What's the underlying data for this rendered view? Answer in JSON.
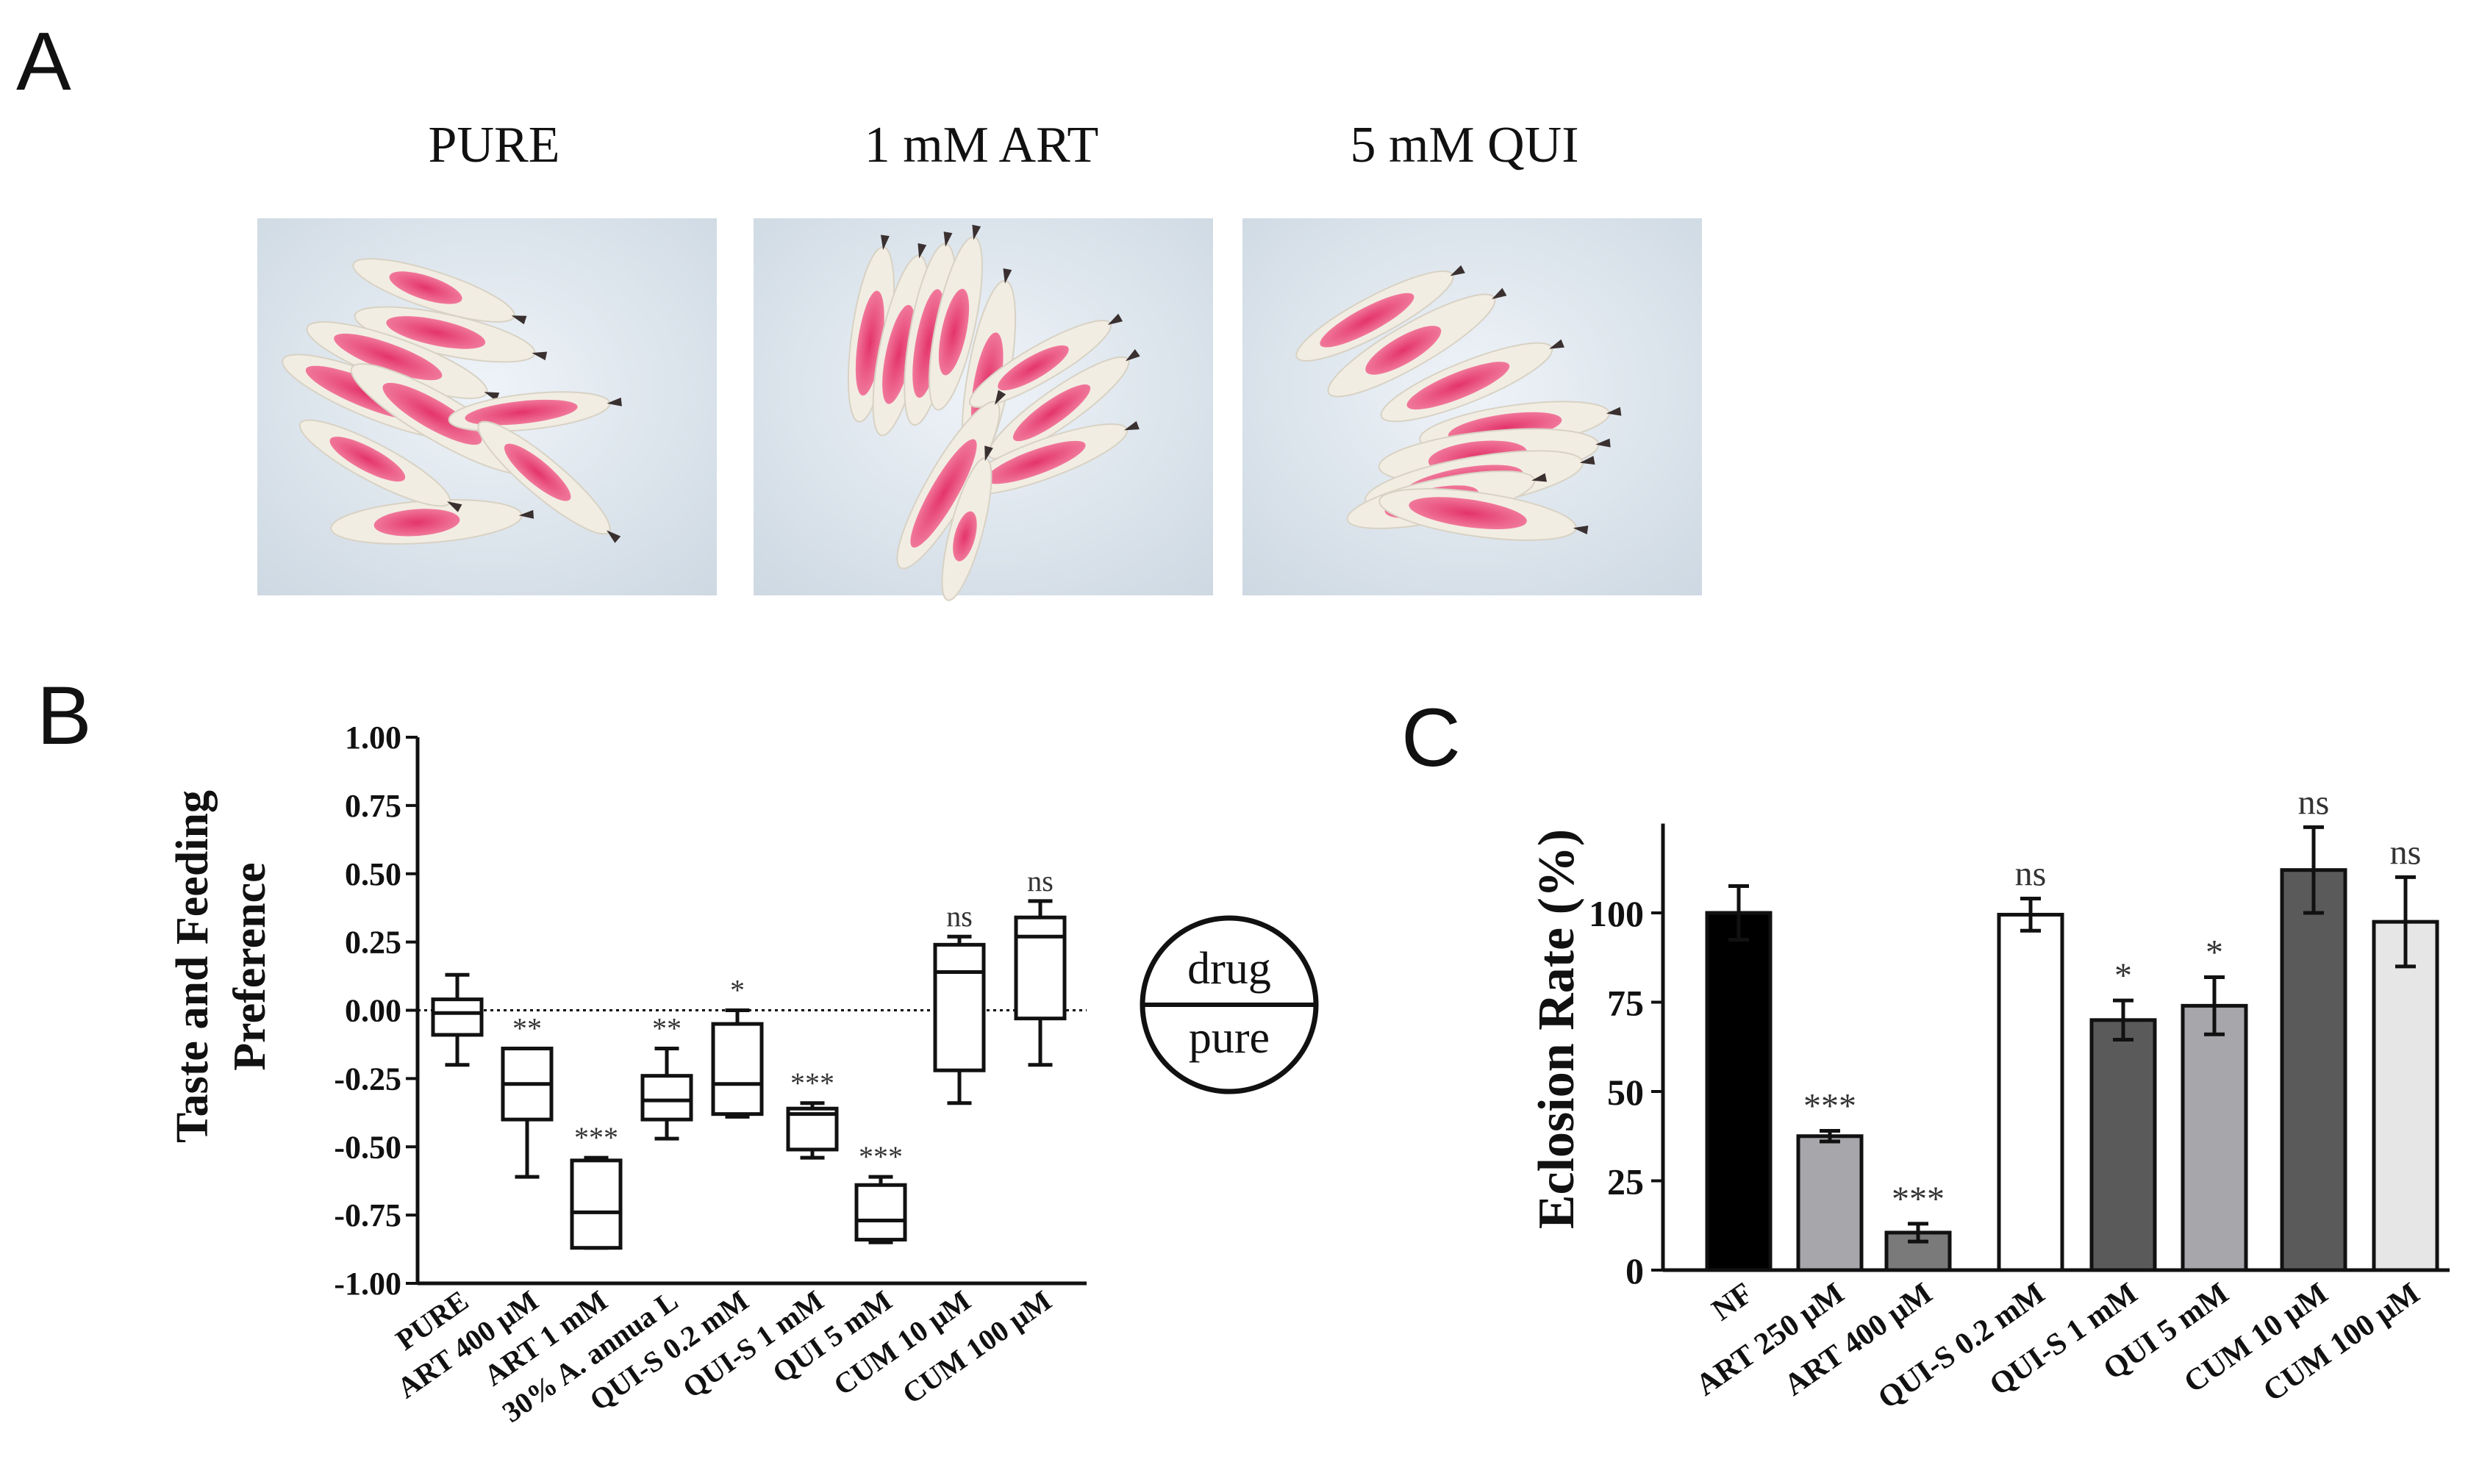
{
  "panel_a": {
    "letter": "A",
    "photos": [
      {
        "label": "PURE"
      },
      {
        "label": "1 mM ART"
      },
      {
        "label": "5 mM QUI"
      }
    ]
  },
  "panel_b": {
    "letter": "B",
    "legend": {
      "top": "drug",
      "bottom": "pure"
    }
  },
  "panel_c": {
    "letter": "C"
  },
  "colors": {
    "larva_body": "#f2ede3",
    "larva_gut": "#e8336b",
    "photo_bg": "#dfe7ef",
    "nf_bar": "#000000",
    "art_bar": "#a6a6ab",
    "quis02_bar": "#ffffff",
    "dark_bar": "#5a5a5a",
    "cum100_bar": "#e6e6e6"
  },
  "chart_data": [
    {
      "type": "box",
      "ylabel": [
        "Taste and Feeding",
        "Preference"
      ],
      "ylim": [
        -1.0,
        1.0
      ],
      "yticks": [
        "1.00",
        "0.75",
        "0.50",
        "0.25",
        "0.00",
        "-0.25",
        "-0.50",
        "-0.75",
        "-1.00"
      ],
      "ytick_values": [
        1.0,
        0.75,
        0.5,
        0.25,
        0.0,
        -0.25,
        -0.5,
        -0.75,
        -1.0
      ],
      "reference_line": 0.0,
      "categories": [
        "PURE",
        "ART 400 μM",
        "ART 1 mM",
        "30% A. annua L",
        "QUI-S 0.2 mM",
        "QUI-S 1 mM",
        "QUI 5 mM",
        "CUM 10 μM",
        "CUM 100 μM"
      ],
      "boxes": [
        {
          "min": -0.2,
          "q1": -0.09,
          "median": -0.01,
          "q3": 0.04,
          "max": 0.13,
          "sig": ""
        },
        {
          "min": -0.61,
          "q1": -0.4,
          "median": -0.27,
          "q3": -0.14,
          "max": -0.14,
          "sig": "**"
        },
        {
          "min": -0.87,
          "q1": -0.87,
          "median": -0.74,
          "q3": -0.55,
          "max": -0.54,
          "sig": "***"
        },
        {
          "min": -0.47,
          "q1": -0.4,
          "median": -0.33,
          "q3": -0.24,
          "max": -0.14,
          "sig": "**"
        },
        {
          "min": -0.39,
          "q1": -0.38,
          "median": -0.27,
          "q3": -0.05,
          "max": 0.0,
          "sig": "*"
        },
        {
          "min": -0.54,
          "q1": -0.51,
          "median": -0.38,
          "q3": -0.36,
          "max": -0.34,
          "sig": "***"
        },
        {
          "min": -0.85,
          "q1": -0.84,
          "median": -0.77,
          "q3": -0.64,
          "max": -0.61,
          "sig": "***"
        },
        {
          "min": -0.34,
          "q1": -0.22,
          "median": 0.14,
          "q3": 0.24,
          "max": 0.27,
          "sig": "ns"
        },
        {
          "min": -0.2,
          "q1": -0.03,
          "median": 0.27,
          "q3": 0.34,
          "max": 0.4,
          "sig": "ns"
        }
      ]
    },
    {
      "type": "bar",
      "ylabel": "Eclosion Rate (%)",
      "ylim": [
        0,
        125
      ],
      "yticks": [
        "0",
        "25",
        "50",
        "75",
        "100"
      ],
      "ytick_values": [
        0,
        25,
        50,
        75,
        100
      ],
      "categories": [
        "NF",
        "ART 250 μM",
        "ART 400 μM",
        "QUI-S 0.2 mM",
        "QUI-S 1 mM",
        "QUI 5 mM",
        "CUM 10 μM",
        "CUM 100 μM"
      ],
      "values": [
        100,
        37.5,
        10.5,
        99.5,
        70,
        74,
        112,
        97.5
      ],
      "errors": [
        7.5,
        1.5,
        2.5,
        4.5,
        5.5,
        8,
        12,
        12.5
      ],
      "colors": [
        "#000000",
        "#a6a6ab",
        "#7a7a7a",
        "#ffffff",
        "#5a5a5a",
        "#a6a6ab",
        "#5a5a5a",
        "#e6e6e6"
      ],
      "sig": [
        "",
        "***",
        "***",
        "ns",
        "*",
        "*",
        "ns",
        "ns"
      ]
    }
  ]
}
